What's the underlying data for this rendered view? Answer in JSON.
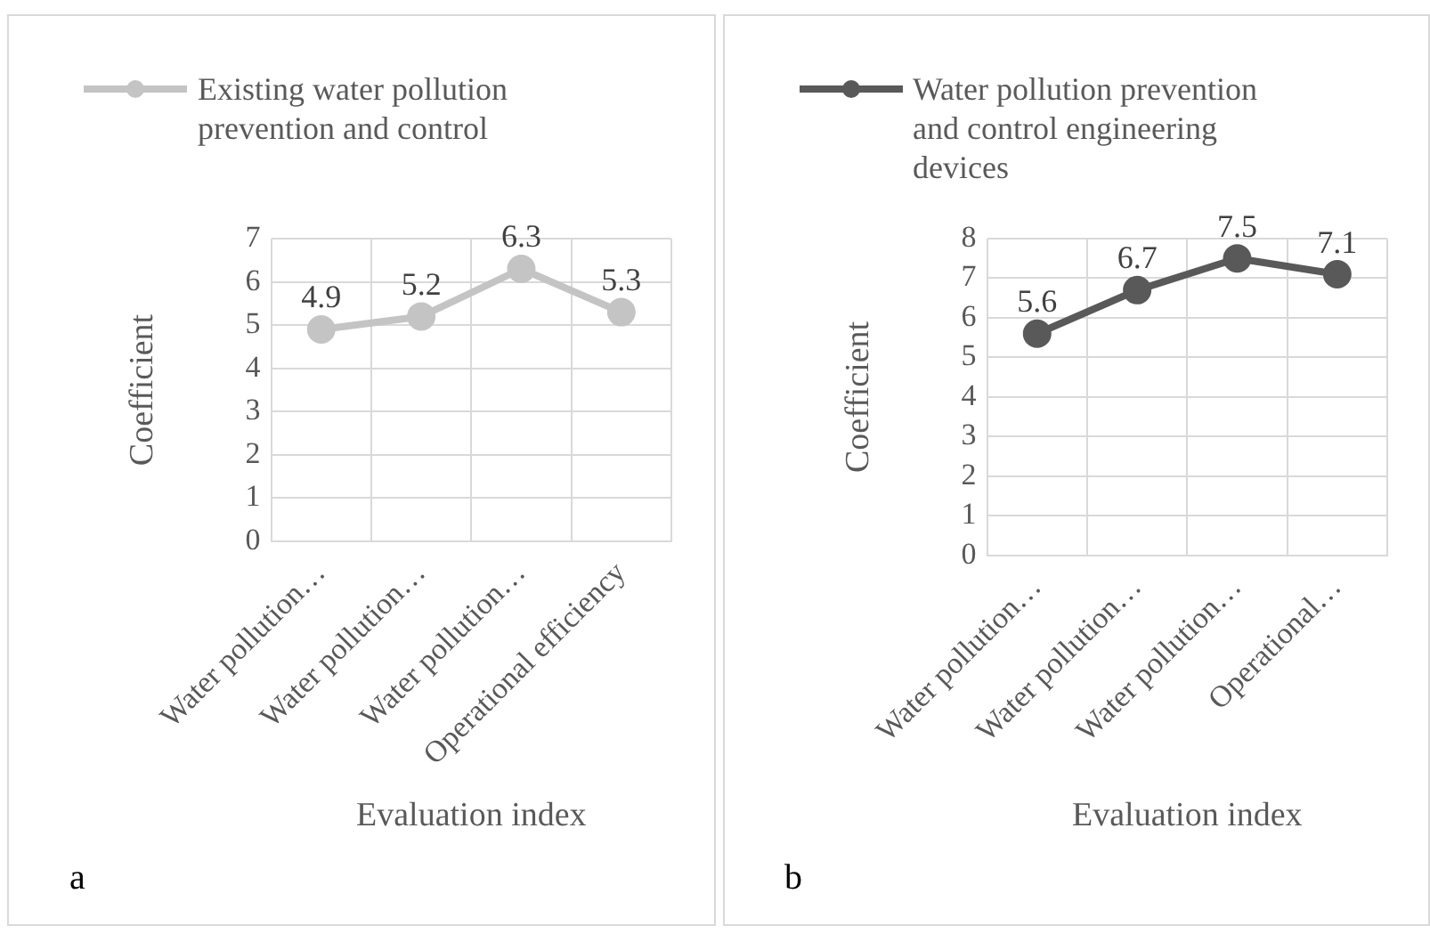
{
  "chart_data": [
    {
      "type": "line",
      "categories": [
        "Water pollution…",
        "Water pollution…",
        "Water pollution…",
        "Operational efficiency"
      ],
      "series": [
        {
          "name": "Existing water pollution prevention and control",
          "color": "#c4c4c4",
          "values": [
            4.9,
            5.2,
            6.3,
            5.3
          ]
        }
      ],
      "ylim": [
        0,
        7
      ],
      "yticks": [
        0,
        1,
        2,
        3,
        4,
        5,
        6,
        7
      ],
      "ylabel": "Coefficient",
      "xlabel": "Evaluation index",
      "data_labels": true,
      "grid": true,
      "legend": "top",
      "marker": "circle",
      "annotations": [
        "a"
      ]
    },
    {
      "type": "line",
      "categories": [
        "Water pollution…",
        "Water pollution…",
        "Water pollution…",
        "Operational…"
      ],
      "series": [
        {
          "name": "Water pollution prevention and control engineering devices",
          "color": "#595959",
          "values": [
            5.6,
            6.7,
            7.5,
            7.1
          ]
        }
      ],
      "ylim": [
        0,
        8
      ],
      "yticks": [
        0,
        1,
        2,
        3,
        4,
        5,
        6,
        7,
        8
      ],
      "ylabel": "Coefficient",
      "xlabel": "Evaluation index",
      "data_labels": true,
      "grid": true,
      "legend": "top",
      "marker": "circle",
      "annotations": [
        "b"
      ]
    }
  ]
}
